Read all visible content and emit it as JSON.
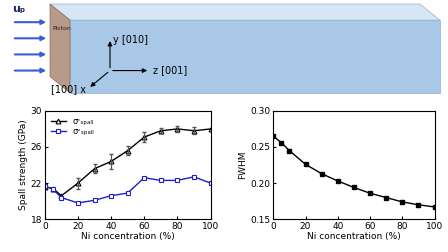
{
  "diagram": {
    "velocity": "uₚ",
    "piston": "Piston",
    "axis_x": "[100] x",
    "axis_y": "y [010]",
    "axis_z": "z [001]"
  },
  "chart_data": [
    {
      "type": "line",
      "xlabel": "Ni concentration (%)",
      "ylabel": "Spall strength (GPa)",
      "xlim": [
        0,
        100
      ],
      "xticks": [
        0,
        20,
        40,
        60,
        80,
        100
      ],
      "ylim": [
        18,
        30
      ],
      "yticks": [
        18,
        22,
        26,
        30
      ],
      "legend": "upper left",
      "x": [
        0,
        5,
        10,
        20,
        30,
        40,
        50,
        60,
        70,
        80,
        90,
        100
      ],
      "series": [
        {
          "name": "σᶜₛₚₐₗₗ",
          "color": "#000000",
          "marker": "triangle",
          "values": [
            21.6,
            21.4,
            20.6,
            22.0,
            23.6,
            24.4,
            25.6,
            27.1,
            27.8,
            28.0,
            27.8,
            28.0
          ],
          "errors": [
            null,
            null,
            null,
            0.6,
            0.5,
            0.8,
            0.5,
            0.6,
            0.3,
            0.3,
            0.4,
            null
          ]
        },
        {
          "name": "σᵛₛₚₐₗₗ",
          "color": "#1f1fc8",
          "marker": "square",
          "values": [
            21.7,
            21.3,
            20.4,
            19.8,
            20.1,
            20.6,
            20.9,
            22.6,
            22.3,
            22.3,
            22.7,
            22.0
          ]
        }
      ]
    },
    {
      "type": "line",
      "xlabel": "Ni concentration (%)",
      "ylabel": "FWHM",
      "xlim": [
        0,
        100
      ],
      "xticks": [
        0,
        20,
        40,
        60,
        80,
        100
      ],
      "ylim": [
        0.15,
        0.3
      ],
      "yticks": [
        0.15,
        {
          "value": 0.2,
          "label": "0.20"
        },
        0.25,
        {
          "value": 0.3,
          "label": "0.30"
        }
      ],
      "x": [
        0,
        5,
        10,
        20,
        30,
        40,
        50,
        60,
        70,
        80,
        90,
        100
      ],
      "series": [
        {
          "color": "#000000",
          "marker": "square",
          "values": [
            0.265,
            0.256,
            0.245,
            0.226,
            0.213,
            0.203,
            0.194,
            0.186,
            0.18,
            0.174,
            0.17,
            0.167
          ]
        }
      ]
    }
  ]
}
